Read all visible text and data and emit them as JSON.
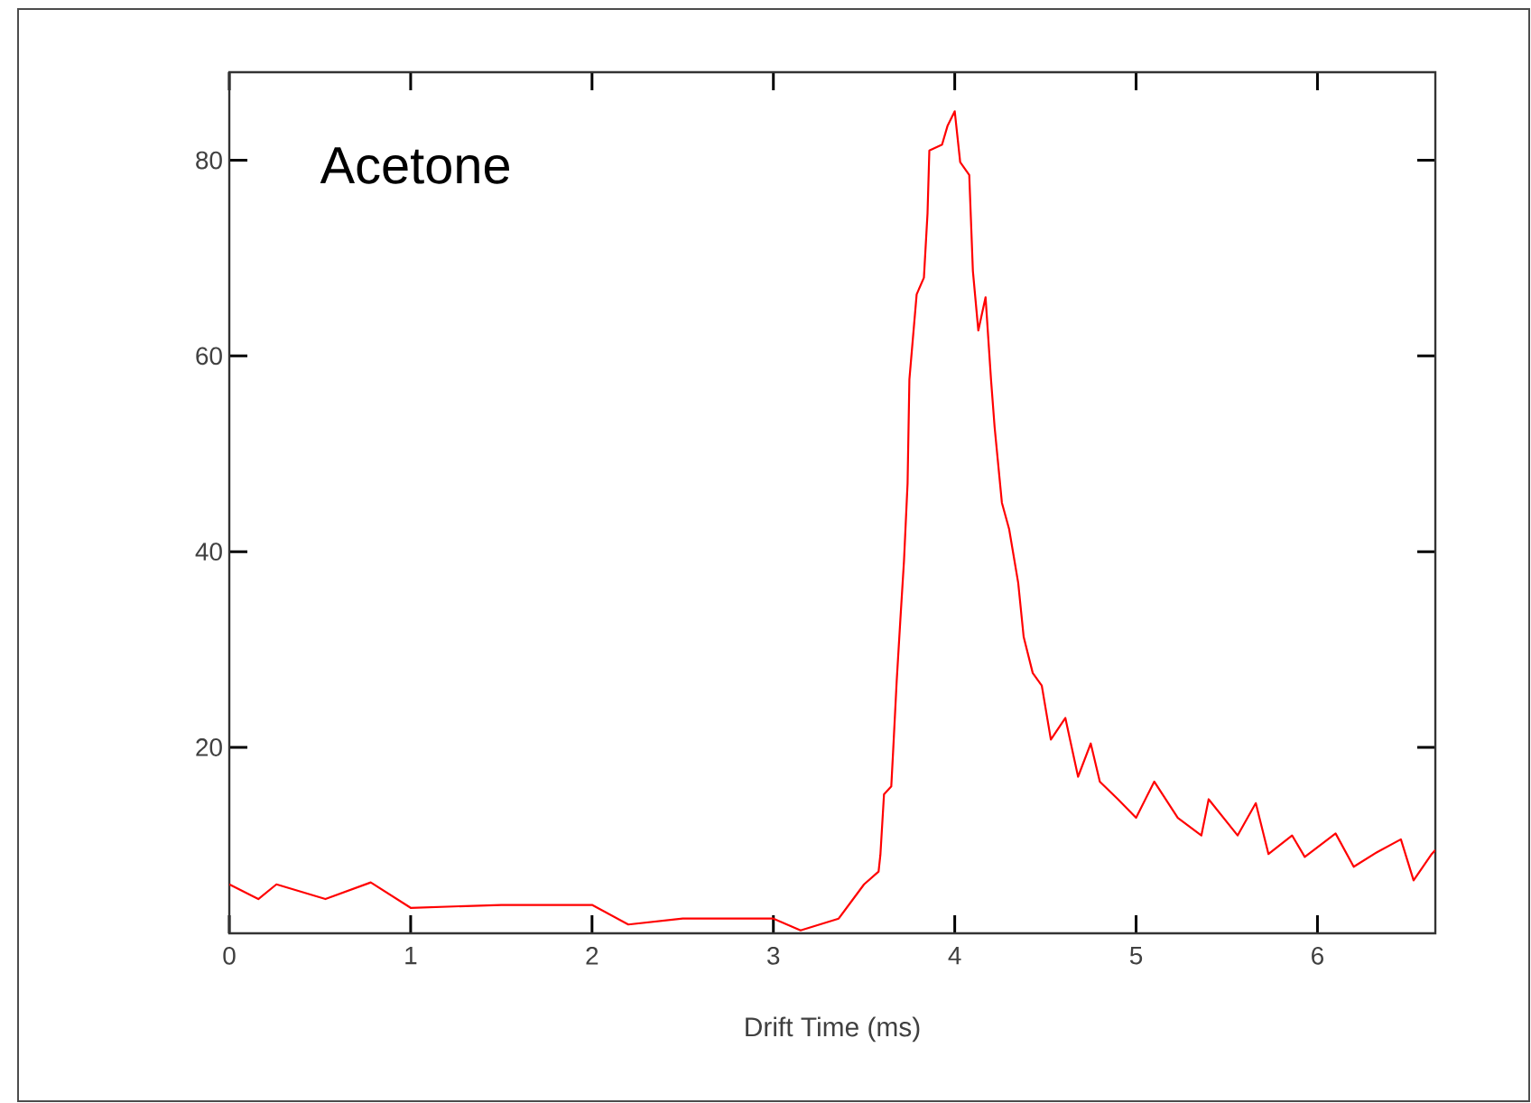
{
  "chart_data": {
    "type": "line",
    "title": "Acetone",
    "xlabel": "Drift Time (ms)",
    "xlim": [
      0,
      6.65
    ],
    "ylim": [
      1,
      89
    ],
    "xticks": [
      0,
      1,
      2,
      3,
      4,
      5,
      6
    ],
    "yticks": [
      20,
      40,
      60,
      80
    ],
    "grid": false,
    "marker": "none",
    "line_style": "solid",
    "series": [
      {
        "color": "#ff0000",
        "x": [
          0.0,
          0.16,
          0.26,
          0.53,
          0.78,
          1.0,
          1.5,
          2.0,
          2.2,
          2.5,
          3.0,
          3.15,
          3.36,
          3.5,
          3.58,
          3.59,
          3.61,
          3.65,
          3.66,
          3.68,
          3.7,
          3.72,
          3.74,
          3.75,
          3.79,
          3.83,
          3.85,
          3.86,
          3.89,
          3.91,
          3.93,
          3.96,
          4.0,
          4.03,
          4.08,
          4.1,
          4.13,
          4.17,
          4.2,
          4.22,
          4.26,
          4.3,
          4.35,
          4.38,
          4.43,
          4.48,
          4.53,
          4.61,
          4.68,
          4.75,
          4.8,
          4.9,
          5.0,
          5.1,
          5.23,
          5.36,
          5.4,
          5.56,
          5.66,
          5.73,
          5.86,
          5.93,
          6.1,
          6.2,
          6.33,
          6.46,
          6.53,
          6.63,
          6.65
        ],
        "values": [
          6.0,
          4.5,
          6.0,
          4.5,
          6.2,
          3.6,
          3.9,
          3.9,
          1.9,
          2.5,
          2.5,
          1.3,
          2.5,
          6.0,
          7.3,
          9.0,
          15.2,
          16,
          19.5,
          26.8,
          33,
          39,
          47,
          57.6,
          66.3,
          68,
          74.6,
          81,
          null,
          null,
          81.6,
          83.5,
          85,
          79.8,
          78.5,
          68.7,
          62.6,
          66,
          57.6,
          52.7,
          45,
          42.3,
          36.8,
          31.3,
          27.6,
          26.3,
          20.8,
          23,
          17,
          20.4,
          16.5,
          14.7,
          12.8,
          16.5,
          12.8,
          11,
          14.7,
          11,
          14.3,
          9.1,
          11,
          8.8,
          11.2,
          7.8,
          9.3,
          10.6,
          6.4,
          9.1,
          9.5
        ]
      }
    ]
  }
}
